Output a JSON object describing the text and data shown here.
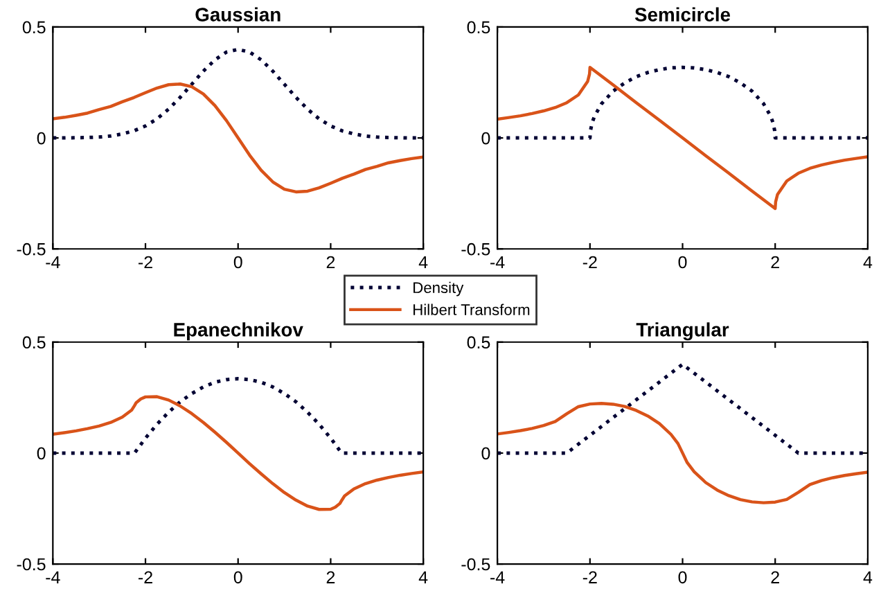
{
  "chart_data": [
    {
      "type": "line",
      "title": "Gaussian",
      "xlim": [
        -4,
        4
      ],
      "xticks": [
        -4,
        -2,
        0,
        2,
        4
      ],
      "ylim": [
        -0.5,
        0.5
      ],
      "yticks": [
        -0.5,
        0,
        0.5
      ],
      "legend": "center",
      "grid": false,
      "series": [
        {
          "name": "Density",
          "color": "#000033",
          "line_style": "dotted",
          "x": [
            -4,
            -3.75,
            -3.5,
            -3.25,
            -3,
            -2.75,
            -2.5,
            -2.25,
            -2,
            -1.75,
            -1.5,
            -1.25,
            -1,
            -0.75,
            -0.5,
            -0.25,
            0,
            0.25,
            0.5,
            0.75,
            1,
            1.25,
            1.5,
            1.75,
            2,
            2.25,
            2.5,
            2.75,
            3,
            3.25,
            3.5,
            3.75,
            4
          ],
          "values": [
            0,
            0,
            0.001,
            0.002,
            0.004,
            0.009,
            0.018,
            0.032,
            0.054,
            0.086,
            0.13,
            0.183,
            0.242,
            0.301,
            0.352,
            0.387,
            0.399,
            0.387,
            0.352,
            0.301,
            0.242,
            0.183,
            0.13,
            0.086,
            0.054,
            0.032,
            0.018,
            0.009,
            0.004,
            0.002,
            0.001,
            0,
            0
          ]
        },
        {
          "name": "Hilbert Transform",
          "color": "#d95319",
          "line_style": "solid",
          "x": [
            -4,
            -3.75,
            -3.5,
            -3.25,
            -3,
            -2.75,
            -2.5,
            -2.25,
            -2,
            -1.75,
            -1.5,
            -1.25,
            -1,
            -0.75,
            -0.5,
            -0.25,
            0,
            0.25,
            0.5,
            0.75,
            1,
            1.25,
            1.5,
            1.75,
            2,
            2.25,
            2.5,
            2.75,
            3,
            3.25,
            3.5,
            3.75,
            4
          ],
          "values": [
            0.086,
            0.093,
            0.102,
            0.112,
            0.128,
            0.142,
            0.163,
            0.182,
            0.204,
            0.225,
            0.24,
            0.243,
            0.231,
            0.198,
            0.146,
            0.078,
            0,
            -0.078,
            -0.146,
            -0.198,
            -0.231,
            -0.243,
            -0.24,
            -0.225,
            -0.204,
            -0.182,
            -0.163,
            -0.142,
            -0.128,
            -0.112,
            -0.102,
            -0.093,
            -0.086
          ]
        }
      ]
    },
    {
      "type": "line",
      "title": "Semicircle",
      "xlim": [
        -4,
        4
      ],
      "xticks": [
        -4,
        -2,
        0,
        2,
        4
      ],
      "ylim": [
        -0.5,
        0.5
      ],
      "yticks": [
        -0.5,
        0,
        0.5
      ],
      "grid": false,
      "series": [
        {
          "color": "#000033",
          "line_style": "dotted",
          "x": [
            -4,
            -3,
            -2.5,
            -2,
            -1.99,
            -1.95,
            -1.9,
            -1.75,
            -1.5,
            -1.25,
            -1,
            -0.75,
            -0.5,
            -0.25,
            0,
            0.25,
            0.5,
            0.75,
            1,
            1.25,
            1.5,
            1.75,
            1.9,
            1.95,
            1.99,
            2,
            2.5,
            3,
            4
          ],
          "values": [
            0,
            0,
            0,
            0,
            0.032,
            0.071,
            0.099,
            0.154,
            0.211,
            0.248,
            0.276,
            0.295,
            0.308,
            0.316,
            0.318,
            0.316,
            0.308,
            0.295,
            0.276,
            0.248,
            0.211,
            0.154,
            0.099,
            0.071,
            0.032,
            0,
            0,
            0,
            0
          ]
        },
        {
          "color": "#d95319",
          "line_style": "solid",
          "x": [
            -4,
            -3.75,
            -3.5,
            -3.25,
            -3,
            -2.75,
            -2.5,
            -2.25,
            -2.05,
            -2.01,
            -2,
            -1.5,
            -1,
            -0.5,
            0,
            0.5,
            1,
            1.5,
            2,
            2.01,
            2.05,
            2.25,
            2.5,
            2.75,
            3,
            3.25,
            3.5,
            3.75,
            4
          ],
          "values": [
            0.085,
            0.092,
            0.1,
            0.11,
            0.122,
            0.137,
            0.159,
            0.194,
            0.255,
            0.288,
            0.318,
            0.239,
            0.159,
            0.08,
            0,
            -0.08,
            -0.159,
            -0.239,
            -0.318,
            -0.288,
            -0.255,
            -0.194,
            -0.159,
            -0.137,
            -0.122,
            -0.11,
            -0.1,
            -0.092,
            -0.085
          ]
        }
      ]
    },
    {
      "type": "line",
      "title": "Epanechnikov",
      "xlim": [
        -4,
        4
      ],
      "xticks": [
        -4,
        -2,
        0,
        2,
        4
      ],
      "ylim": [
        -0.5,
        0.5
      ],
      "yticks": [
        -0.5,
        0,
        0.5
      ],
      "grid": false,
      "series": [
        {
          "color": "#000033",
          "line_style": "dotted",
          "x": [
            -4,
            -3,
            -2.5,
            -2.236,
            -2,
            -1.75,
            -1.5,
            -1.25,
            -1,
            -0.75,
            -0.5,
            -0.25,
            0,
            0.25,
            0.5,
            0.75,
            1,
            1.25,
            1.5,
            1.75,
            2,
            2.236,
            2.5,
            3,
            4
          ],
          "values": [
            0,
            0,
            0,
            0,
            0.067,
            0.13,
            0.184,
            0.231,
            0.268,
            0.298,
            0.319,
            0.331,
            0.335,
            0.331,
            0.319,
            0.298,
            0.268,
            0.231,
            0.184,
            0.13,
            0.067,
            0,
            0,
            0,
            0
          ]
        },
        {
          "color": "#d95319",
          "line_style": "solid",
          "x": [
            -4,
            -3.75,
            -3.5,
            -3.25,
            -3,
            -2.75,
            -2.5,
            -2.3,
            -2.236,
            -2.2,
            -2.1,
            -2,
            -1.75,
            -1.5,
            -1.25,
            -1,
            -0.75,
            -0.5,
            -0.25,
            0,
            0.25,
            0.5,
            0.75,
            1,
            1.25,
            1.5,
            1.75,
            2,
            2.1,
            2.2,
            2.236,
            2.3,
            2.5,
            2.75,
            3,
            3.25,
            3.5,
            3.75,
            4
          ],
          "values": [
            0.085,
            0.092,
            0.1,
            0.11,
            0.122,
            0.138,
            0.162,
            0.193,
            0.214,
            0.227,
            0.244,
            0.253,
            0.254,
            0.239,
            0.212,
            0.178,
            0.138,
            0.094,
            0.048,
            0,
            -0.048,
            -0.094,
            -0.138,
            -0.178,
            -0.212,
            -0.239,
            -0.254,
            -0.253,
            -0.244,
            -0.227,
            -0.214,
            -0.193,
            -0.162,
            -0.138,
            -0.122,
            -0.11,
            -0.1,
            -0.092,
            -0.085
          ]
        }
      ]
    },
    {
      "type": "line",
      "title": "Triangular",
      "xlim": [
        -4,
        4
      ],
      "xticks": [
        -4,
        -2,
        0,
        2,
        4
      ],
      "ylim": [
        -0.5,
        0.5
      ],
      "yticks": [
        -0.5,
        0,
        0.5
      ],
      "grid": false,
      "series": [
        {
          "color": "#000033",
          "line_style": "dotted",
          "x": [
            -4,
            -3,
            -2.5,
            -2,
            -1.5,
            -1,
            -0.5,
            0,
            0.5,
            1,
            1.5,
            2,
            2.5,
            3,
            4
          ],
          "values": [
            0,
            0,
            0,
            0.08,
            0.16,
            0.24,
            0.32,
            0.4,
            0.32,
            0.24,
            0.16,
            0.08,
            0,
            0,
            0
          ]
        },
        {
          "color": "#d95319",
          "line_style": "solid",
          "x": [
            -4,
            -3.75,
            -3.5,
            -3.25,
            -3,
            -2.75,
            -2.5,
            -2.25,
            -2,
            -1.75,
            -1.5,
            -1.25,
            -1,
            -0.75,
            -0.5,
            -0.25,
            -0.1,
            0,
            0.1,
            0.25,
            0.5,
            0.75,
            1,
            1.25,
            1.5,
            1.75,
            2,
            2.25,
            2.5,
            2.75,
            3,
            3.25,
            3.5,
            3.75,
            4
          ],
          "values": [
            0.086,
            0.093,
            0.101,
            0.111,
            0.124,
            0.142,
            0.177,
            0.209,
            0.221,
            0.224,
            0.22,
            0.21,
            0.192,
            0.167,
            0.133,
            0.084,
            0.043,
            0,
            -0.043,
            -0.084,
            -0.133,
            -0.167,
            -0.192,
            -0.21,
            -0.22,
            -0.224,
            -0.221,
            -0.209,
            -0.177,
            -0.142,
            -0.124,
            -0.111,
            -0.101,
            -0.093,
            -0.086
          ]
        }
      ]
    }
  ]
}
